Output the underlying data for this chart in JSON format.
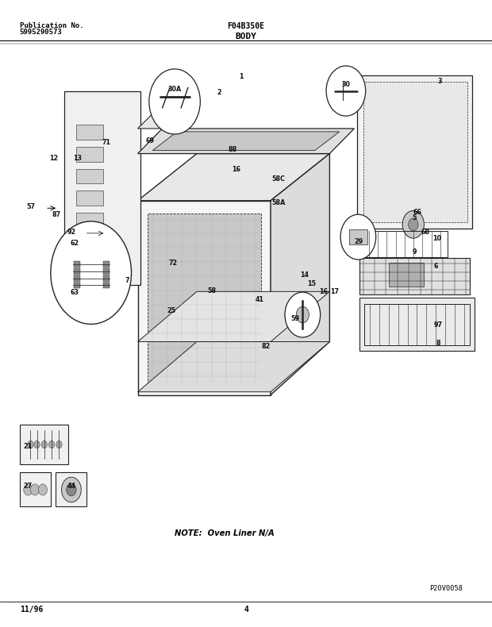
{
  "title_left_line1": "Publication No.",
  "title_left_line2": "5995290573",
  "title_center_top": "F04B350E",
  "title_center_bottom": "BODY",
  "footer_left": "11/96",
  "footer_center": "4",
  "footer_right": "P20V0058",
  "note_text": "NOTE:  Oven Liner N/A",
  "bg_color": "#ffffff",
  "line_color": "#000000",
  "fig_width": 6.2,
  "fig_height": 7.9,
  "dpi": 100
}
